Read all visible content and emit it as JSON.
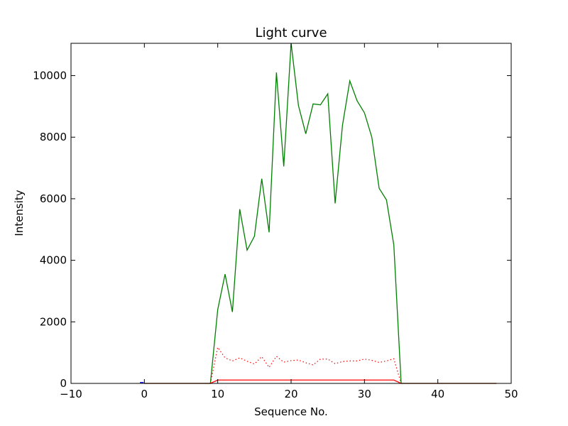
{
  "chart_data": {
    "type": "line",
    "title": "Light curve",
    "xlabel": "Sequence No.",
    "ylabel": "Intensity",
    "xlim": [
      -10,
      50
    ],
    "ylim": [
      0,
      11050
    ],
    "xticks": [
      -10,
      0,
      10,
      20,
      30,
      40,
      50
    ],
    "yticks": [
      0,
      2000,
      4000,
      6000,
      8000,
      10000
    ],
    "grid": false,
    "series": [
      {
        "color": "#008000",
        "linestyle": "solid",
        "x": [
          0,
          1,
          2,
          3,
          4,
          5,
          6,
          7,
          8,
          9,
          10,
          11,
          12,
          13,
          14,
          15,
          16,
          17,
          18,
          19,
          20,
          21,
          22,
          23,
          24,
          25,
          26,
          27,
          28,
          29,
          30,
          31,
          32,
          33,
          34,
          35,
          36,
          37,
          38,
          39,
          40,
          41,
          42,
          43,
          44,
          45,
          46,
          47,
          48
        ],
        "y": [
          0,
          0,
          0,
          0,
          0,
          0,
          0,
          0,
          0,
          0,
          2400,
          3550,
          2320,
          5660,
          4330,
          4780,
          6650,
          4910,
          10100,
          7050,
          11050,
          9030,
          8110,
          9080,
          9050,
          9410,
          5850,
          8380,
          9830,
          9180,
          8790,
          8000,
          6340,
          5960,
          4500,
          0,
          0,
          0,
          0,
          0,
          0,
          0,
          0,
          0,
          0,
          0,
          0,
          0,
          0
        ]
      },
      {
        "color": "#ff0000",
        "linestyle": "dotted",
        "x": [
          9,
          10,
          11,
          12,
          13,
          14,
          15,
          16,
          17,
          18,
          19,
          20,
          21,
          22,
          23,
          24,
          25,
          26,
          27,
          28,
          29,
          30,
          31,
          32,
          33,
          34,
          35
        ],
        "y": [
          0,
          1170,
          830,
          730,
          830,
          720,
          630,
          870,
          520,
          880,
          690,
          740,
          760,
          670,
          600,
          790,
          790,
          640,
          710,
          730,
          730,
          790,
          750,
          680,
          730,
          800,
          0
        ]
      },
      {
        "color": "#ff0000",
        "linestyle": "solid",
        "x": [
          0,
          1,
          2,
          3,
          4,
          5,
          6,
          7,
          8,
          9,
          10,
          11,
          12,
          13,
          14,
          15,
          16,
          17,
          18,
          19,
          20,
          21,
          22,
          23,
          24,
          25,
          26,
          27,
          28,
          29,
          30,
          31,
          32,
          33,
          34,
          35,
          36,
          37,
          38,
          39,
          40,
          41,
          42,
          43,
          44,
          45,
          46,
          47,
          48
        ],
        "y": [
          0,
          0,
          0,
          0,
          0,
          0,
          0,
          0,
          0,
          0,
          110,
          110,
          110,
          110,
          110,
          110,
          110,
          110,
          110,
          110,
          110,
          110,
          110,
          110,
          110,
          110,
          110,
          110,
          110,
          110,
          110,
          110,
          110,
          110,
          110,
          0,
          0,
          0,
          0,
          0,
          0,
          0,
          0,
          0,
          0,
          0,
          0,
          0,
          0
        ]
      },
      {
        "color": "#0000ff",
        "linestyle": "solid",
        "x": [
          -0.6,
          -0.1
        ],
        "y": [
          30,
          30
        ]
      }
    ]
  }
}
